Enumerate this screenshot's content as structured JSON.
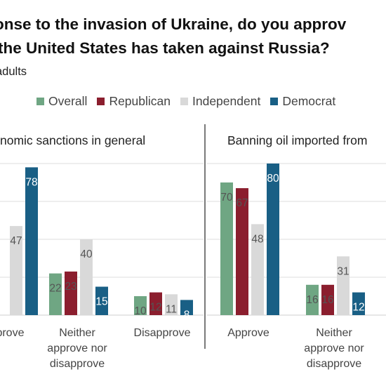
{
  "title_lines": [
    "onse to the invasion of Ukraine, do you approv",
    "the United States has taken against Russia?"
  ],
  "subtitle": "adults",
  "colors": {
    "Overall": "#6fa683",
    "Republican": "#8b1e2e",
    "Independent": "#d9d9d9",
    "Democrat": "#195f85"
  },
  "chart_data": [
    {
      "type": "bar",
      "title": "nomic sanctions in general",
      "categories": [
        "pprove",
        "Neither approve nor disapprove",
        "Disapprove"
      ],
      "category_lines": [
        [
          "pprove"
        ],
        [
          "Neither",
          "approve nor",
          "disapprove"
        ],
        [
          "Disapprove"
        ]
      ],
      "series": [
        {
          "name": "Overall",
          "values": [
            null,
            22,
            10
          ]
        },
        {
          "name": "Republican",
          "values": [
            null,
            23,
            12
          ]
        },
        {
          "name": "Independent",
          "values": [
            47,
            40,
            11
          ]
        },
        {
          "name": "Democrat",
          "values": [
            78,
            15,
            8
          ]
        }
      ],
      "data_labels": [
        [
          null,
          "22",
          "10"
        ],
        [
          null,
          "23",
          "12"
        ],
        [
          "47",
          "40",
          "11"
        ],
        [
          "78",
          "15",
          "8"
        ]
      ],
      "ylim": [
        0,
        100
      ],
      "grid": true,
      "xlabel": "",
      "ylabel": ""
    },
    {
      "type": "bar",
      "title": "Banning oil imported from",
      "categories": [
        "Approve",
        "Neither approve nor disapprove"
      ],
      "category_lines": [
        [
          "Approve"
        ],
        [
          "Neither",
          "approve nor",
          "disapprove"
        ]
      ],
      "series": [
        {
          "name": "Overall",
          "values": [
            70,
            16
          ]
        },
        {
          "name": "Republican",
          "values": [
            67,
            16
          ]
        },
        {
          "name": "Independent",
          "values": [
            48,
            31
          ]
        },
        {
          "name": "Democrat",
          "values": [
            80,
            12
          ]
        }
      ],
      "data_labels": [
        [
          "70",
          "16"
        ],
        [
          "67",
          "16"
        ],
        [
          "48",
          "31"
        ],
        [
          "80",
          "12"
        ]
      ],
      "ylim": [
        0,
        100
      ],
      "grid": true,
      "xlabel": "",
      "ylabel": ""
    }
  ]
}
